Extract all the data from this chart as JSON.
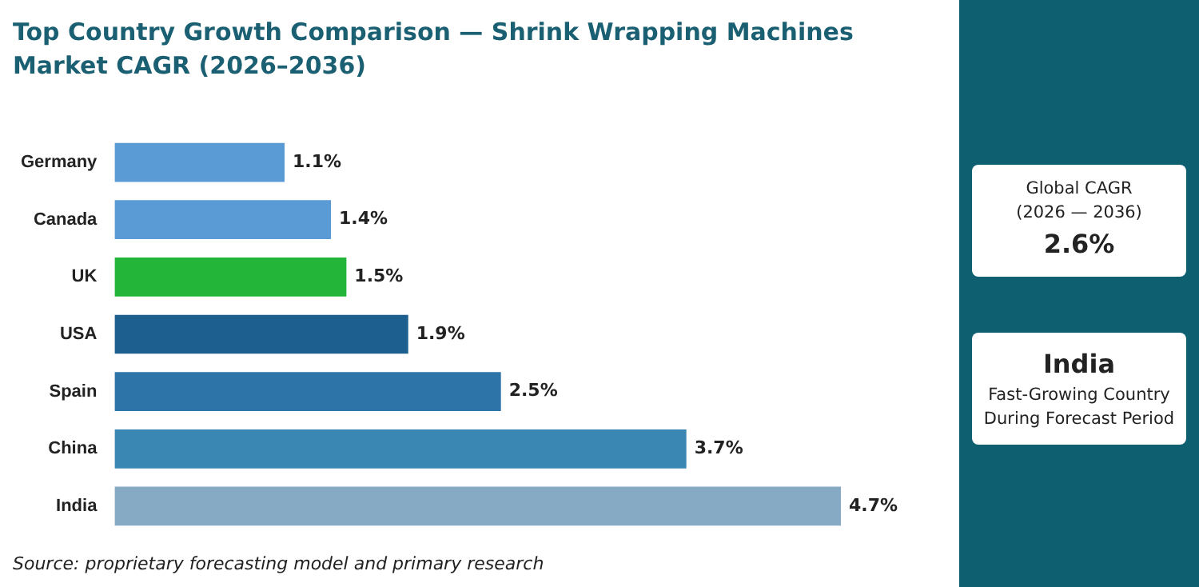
{
  "chart_data": {
    "type": "bar",
    "orientation": "horizontal",
    "title": "Top Country Growth Comparison — Shrink Wrapping Machines Market CAGR (2026–2036)",
    "categories": [
      "Germany",
      "Canada",
      "UK",
      "USA",
      "Spain",
      "China",
      "India"
    ],
    "values": [
      1.1,
      1.4,
      1.5,
      1.9,
      2.5,
      3.7,
      4.7
    ],
    "colors": [
      "#5b9bd5",
      "#5b9bd5",
      "#22b53a",
      "#1d5f8e",
      "#2d74a8",
      "#3a87b3",
      "#86a9c4"
    ],
    "value_labels": [
      "1.1%",
      "1.4%",
      "1.5%",
      "1.9%",
      "2.5%",
      "3.7%",
      "4.7%"
    ],
    "legend": false,
    "annotations": [
      "Source: proprietary forecasting model and primary research",
      "Global CAGR",
      "(2026 — 2036)",
      "2.6%",
      "India",
      "Fast-Growing Country During Forecast Period"
    ]
  }
}
